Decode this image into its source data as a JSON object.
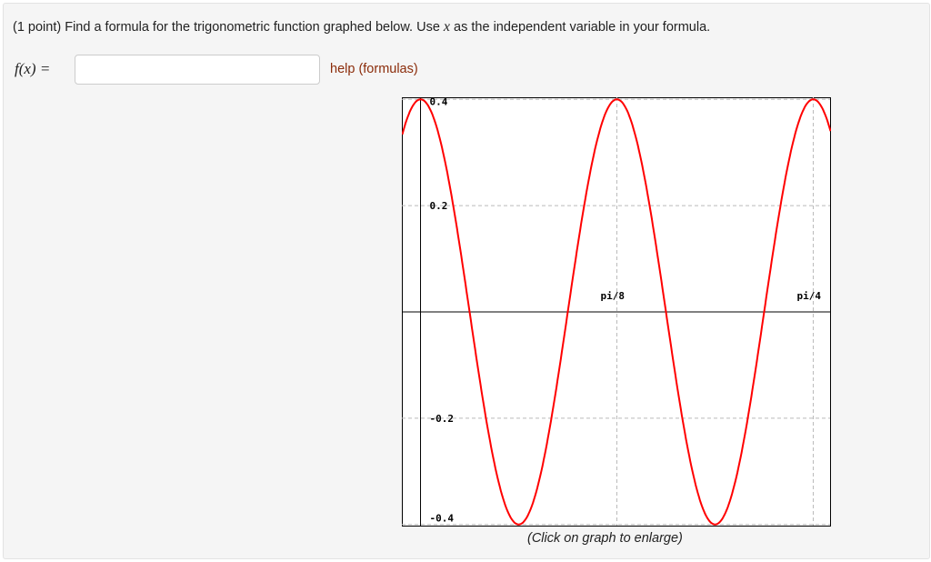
{
  "question": {
    "prefix": "(1 point) Find a formula for the trigonometric function graphed below. Use ",
    "var": "x",
    "suffix": " as the independent variable in your formula."
  },
  "answer": {
    "label": "f(x) =",
    "value": "",
    "help_link": "help (formulas)"
  },
  "caption": "(Click on graph to enlarge)",
  "chart_data": {
    "type": "line",
    "title": "",
    "xlabel": "",
    "ylabel": "",
    "xlim": [
      -0.0364,
      0.82
    ],
    "ylim": [
      -0.403,
      0.403
    ],
    "grid": true,
    "x_ticks": [
      {
        "value": 0.3927,
        "label": "pi/8"
      },
      {
        "value": 0.7854,
        "label": "pi/4"
      }
    ],
    "y_ticks": [
      {
        "value": 0.4,
        "label": "0.4"
      },
      {
        "value": 0.2,
        "label": "0.2"
      },
      {
        "value": -0.2,
        "label": "-0.2"
      },
      {
        "value": -0.4,
        "label": "-0.4"
      }
    ],
    "series": [
      {
        "color": "#ff0000",
        "amplitude": 0.4,
        "period": 0.3927,
        "phase": 0,
        "points": [
          [
            0,
            0.4
          ],
          [
            0.0982,
            0
          ],
          [
            0.1963,
            -0.4
          ],
          [
            0.2945,
            0
          ],
          [
            0.3927,
            0.4
          ],
          [
            0.4909,
            0
          ],
          [
            0.589,
            -0.4
          ],
          [
            0.6872,
            0
          ],
          [
            0.7854,
            0.4
          ]
        ]
      }
    ]
  }
}
